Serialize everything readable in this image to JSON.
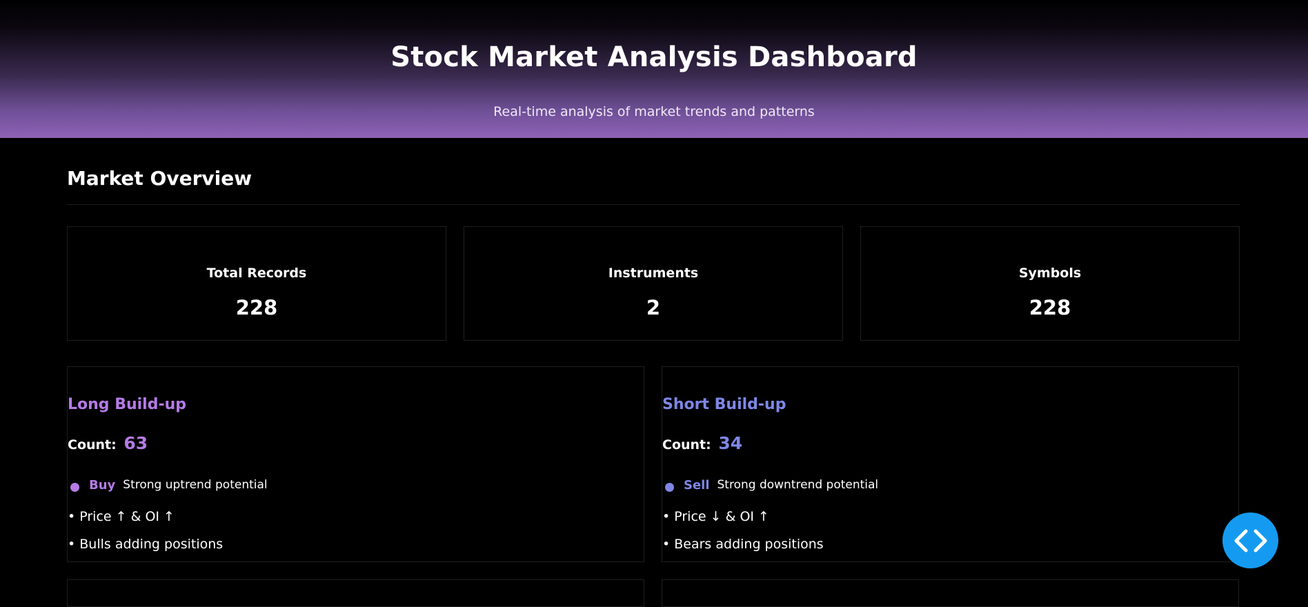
{
  "header": {
    "title": "Stock Market Analysis Dashboard",
    "subtitle": "Real-time analysis of market trends and patterns"
  },
  "overview": {
    "title": "Market Overview",
    "stats": [
      {
        "label": "Total Records",
        "value": "228"
      },
      {
        "label": "Instruments",
        "value": "2"
      },
      {
        "label": "Symbols",
        "value": "228"
      }
    ]
  },
  "signals": [
    {
      "title": "Long Build-up",
      "count_label": "Count:",
      "count": "63",
      "action": "Buy",
      "description": "Strong uptrend potential",
      "bullets": [
        "• Price ↑ & OI ↑",
        "• Bulls adding positions"
      ],
      "color": "#b57be6"
    },
    {
      "title": "Short Build-up",
      "count_label": "Count:",
      "count": "34",
      "action": "Sell",
      "description": "Strong downtrend potential",
      "bullets": [
        "• Price ↓ & OI ↑",
        "• Bears adding positions"
      ],
      "color": "#7f87e6"
    }
  ],
  "fab": {
    "icon": "code-icon",
    "color": "#149bf1"
  }
}
